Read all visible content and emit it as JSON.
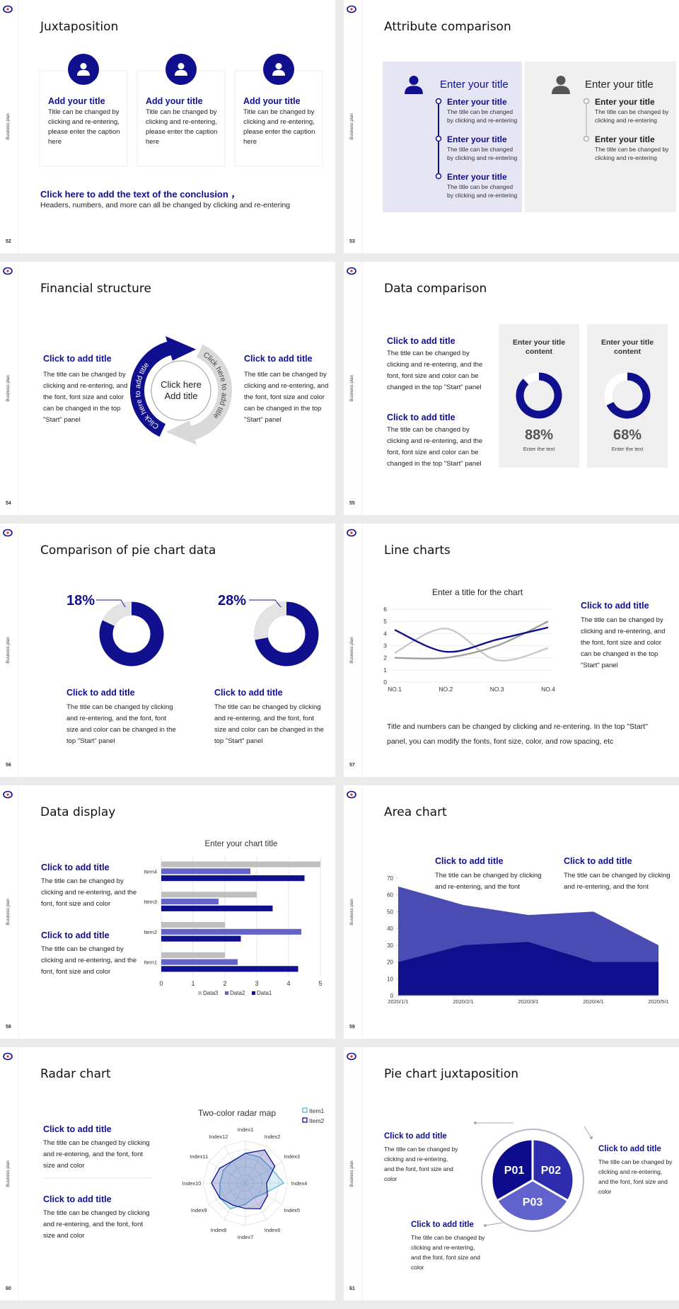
{
  "side_label": "Business plan",
  "slides": [
    {
      "number": "52",
      "title": "Juxtaposition",
      "cards": [
        {
          "title": "Add your title",
          "text": "Title can be changed by clicking and re-entering, please enter the caption here"
        },
        {
          "title": "Add your title",
          "text": "Title can be changed by clicking and re-entering, please enter the caption here"
        },
        {
          "title": "Add your title",
          "text": "Title can be changed by clicking and re-entering, please enter the caption here"
        }
      ],
      "conclusion": "Click here to add the text of the conclusion ，",
      "note": "Headers, numbers, and more can all be changed by clicking and re-entering"
    },
    {
      "number": "53",
      "title": "Attribute comparison",
      "panels": [
        {
          "heading": "Enter your title",
          "items": [
            {
              "title": "Enter your title",
              "text": "The title can be changed by clicking and re-entering"
            },
            {
              "title": "Enter your title",
              "text": "The title can be changed by clicking and re-entering"
            },
            {
              "title": "Enter your title",
              "text": "The title can be changed by clicking and re-entering"
            }
          ]
        },
        {
          "heading": "Enter your title",
          "items": [
            {
              "title": "Enter your title",
              "text": "The title can be changed by clicking and re-entering"
            },
            {
              "title": "Enter your title",
              "text": "The title can be changed by clicking and re-entering"
            }
          ]
        }
      ]
    },
    {
      "number": "54",
      "title": "Financial structure",
      "blocks": [
        {
          "title": "Click to add title",
          "text": "The title can be changed by clicking and re-entering, and the font, font size and color can be changed in the top \"Start\" panel"
        },
        {
          "title": "Click to add title",
          "text": "The title can be changed by clicking and re-entering, and the font, font size and color can be changed in the top \"Start\" panel"
        }
      ],
      "center": "Click here Add title",
      "arrows": [
        "Click here to add title",
        "Click here to add title"
      ]
    },
    {
      "number": "55",
      "title": "Data comparison",
      "blocks": [
        {
          "title": "Click to add title",
          "text": "The title can be changed by clicking and re-entering, and the font, font size and color can be changed in the top \"Start\" panel"
        },
        {
          "title": "Click to add title",
          "text": "The title can be changed by clicking and re-entering, and the font, font size and color can be changed in the top \"Start\" panel"
        }
      ],
      "cards": [
        {
          "title": "Enter your title content",
          "value": 88,
          "label": "88%",
          "caption": "Enter the text"
        },
        {
          "title": "Enter your title content",
          "value": 68,
          "label": "68%",
          "caption": "Enter the text"
        }
      ]
    },
    {
      "number": "56",
      "title": "Comparison of pie chart data",
      "items": [
        {
          "value": 18,
          "label": "18%",
          "title": "Click to add title",
          "text": "The title can be changed by clicking and re-entering, and the font, font size and color can be changed in the top \"Start\" panel"
        },
        {
          "value": 28,
          "label": "28%",
          "title": "Click to add title",
          "text": "The title can be changed by clicking and re-entering, and the font, font size and color can be changed in the top \"Start\" panel"
        }
      ]
    },
    {
      "number": "57",
      "title": "Line charts",
      "chart": {
        "type": "line",
        "title": "Enter a title for the chart",
        "categories": [
          "NO.1",
          "NO.2",
          "NO.3",
          "NO.4"
        ],
        "series": [
          {
            "color": "#c9c9c9",
            "values": [
              2.4,
              4.4,
              1.8,
              2.8
            ]
          },
          {
            "color": "#a0a0a0",
            "values": [
              2,
              2,
              3,
              5
            ]
          },
          {
            "color": "#10108f",
            "values": [
              4.3,
              2.5,
              3.5,
              4.5
            ]
          }
        ],
        "ylim": [
          0,
          6
        ],
        "yticks": [
          0,
          1,
          2,
          3,
          4,
          5,
          6
        ],
        "grid": true
      },
      "block": {
        "title": "Click to add title",
        "text": "The title can be changed by clicking and re-entering, and the font, font size and color can be changed in the top \"Start\" panel"
      },
      "paragraph": "Title and numbers can be changed by clicking and re-entering. In the top \"Start\" panel, you can modify the fonts, font size, color, and row spacing, etc"
    },
    {
      "number": "58",
      "title": "Data display",
      "chart": {
        "type": "hbar",
        "title": "Enter your chart title",
        "categories": [
          "Item1",
          "Item2",
          "Item3",
          "Item4"
        ],
        "series": [
          {
            "name": "Data1",
            "color": "#10108f",
            "values": [
              4.3,
              2.5,
              3.5,
              4.5
            ]
          },
          {
            "name": "Data2",
            "color": "#6464c8",
            "values": [
              2.4,
              4.4,
              1.8,
              2.8
            ]
          },
          {
            "name": "Data3",
            "color": "#bfbfbf",
            "values": [
              2,
              2,
              3,
              5
            ]
          }
        ],
        "xlim": [
          0,
          5
        ],
        "xticks": [
          0,
          1,
          2,
          3,
          4,
          5
        ],
        "grid": true,
        "legend": "bottom"
      },
      "blocks": [
        {
          "title": "Click to add title",
          "text": "The title can be changed by clicking and re-entering, and the font, font size and color"
        },
        {
          "title": "Click to add title",
          "text": "The title can be changed by clicking and re-entering, and the font, font size and color"
        }
      ]
    },
    {
      "number": "59",
      "title": "Area chart",
      "chart": {
        "type": "area",
        "categories": [
          "2020/1/1",
          "2020/2/1",
          "2020/3/1",
          "2020/4/1",
          "2020/5/1"
        ],
        "series": [
          {
            "color": "#4b4bb4",
            "values": [
              65,
              54,
              48,
              50,
              30
            ]
          },
          {
            "color": "#10108f",
            "values": [
              20,
              30,
              32,
              20,
              20
            ]
          }
        ],
        "ylim": [
          0,
          70
        ],
        "yticks": [
          0,
          10,
          20,
          30,
          40,
          50,
          60,
          70
        ]
      },
      "blocks": [
        {
          "title": "Click to add title",
          "text": "The title can be changed by clicking and re-entering, and the font"
        },
        {
          "title": "Click to add title",
          "text": "The title can be changed by clicking and re-entering, and the font"
        }
      ]
    },
    {
      "number": "60",
      "title": "Radar chart",
      "chart": {
        "type": "radar",
        "title": "Two-color radar map",
        "categories": [
          "Index1",
          "Index2",
          "Index3",
          "Index4",
          "Index5",
          "Index6",
          "Index7",
          "Index8",
          "Index9",
          "Index10",
          "Index11",
          "Index12"
        ],
        "series": [
          {
            "name": "Item1",
            "color": "#5ab4dc",
            "values": [
              3.5,
              3.5,
              3.5,
              4.5,
              2.5,
              2,
              2.5,
              3.5,
              3.5,
              3,
              3,
              3
            ]
          },
          {
            "name": "Item2",
            "color": "#10108f",
            "values": [
              3.5,
              4.5,
              4,
              2.5,
              3,
              3.5,
              3,
              3,
              3.5,
              4,
              3.5,
              3
            ]
          }
        ],
        "rlim": [
          0,
          5
        ],
        "legend": "top-right"
      },
      "blocks": [
        {
          "title": "Click to add title",
          "text": "The title can be changed by clicking and re-entering, and the font, font size and color"
        },
        {
          "title": "Click to add title",
          "text": "The title can be changed by clicking and re-entering, and the font, font size and color"
        }
      ]
    },
    {
      "number": "61",
      "title": "Pie chart juxtaposition",
      "segments": [
        "P01",
        "P02",
        "P03"
      ],
      "blocks": [
        {
          "title": "Click to add title",
          "text": "The title can be changed by clicking and re-entering, and the font, font size and color"
        },
        {
          "title": "Click to add title",
          "text": "The title can be changed by clicking and re-entering, and the font, font size and color"
        },
        {
          "title": "Click to add title",
          "text": "The title can be changed by clicking and re-entering, and the font, font size and color"
        }
      ]
    }
  ]
}
